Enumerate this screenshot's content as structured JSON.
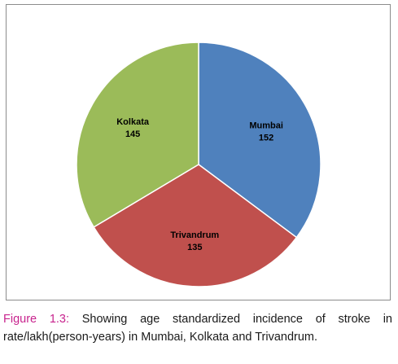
{
  "caption": {
    "figure_label": "Figure 1.3:",
    "text_line1": " Showing age standardized incidence of stroke in",
    "text_line2": "rate/lakh(person-years) in Mumbai, Kolkata and Trivandrum."
  },
  "chart_data": {
    "type": "pie",
    "title": "",
    "start_angle_deg": 0,
    "direction": "clockwise",
    "slices": [
      {
        "name": "Mumbai",
        "value": 152,
        "color": "#4f81bd"
      },
      {
        "name": "Trivandrum",
        "value": 135,
        "color": "#c0504d"
      },
      {
        "name": "Kolkata",
        "value": 145,
        "color": "#9bbb59"
      }
    ],
    "legend": "none",
    "labels_inside": true
  }
}
